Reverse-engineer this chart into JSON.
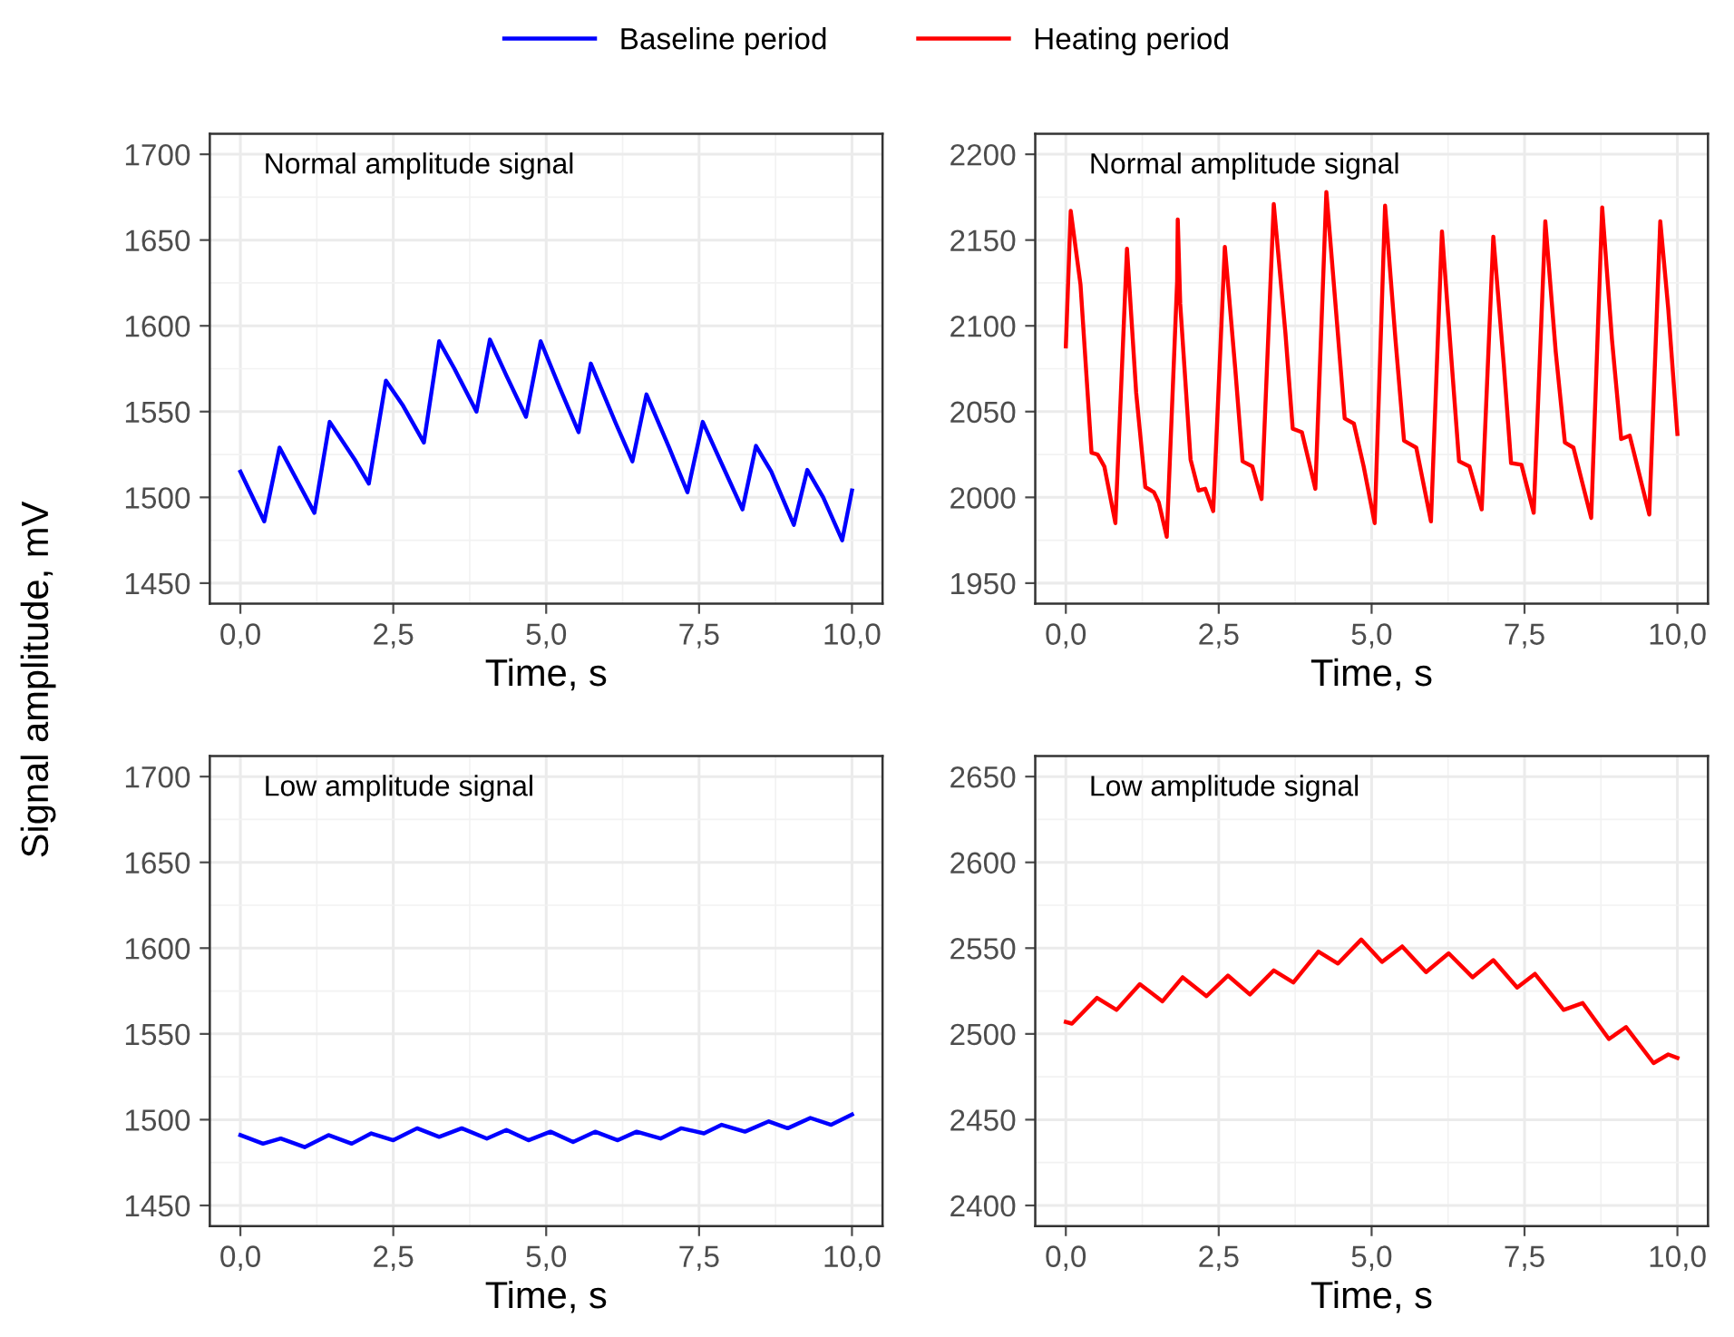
{
  "chart_data": [
    {
      "type": "line",
      "ylabel": "Signal amplitude, mV",
      "xlabel": "Time, s",
      "annotations": [
        "Normal amplitude signal"
      ],
      "legend": "top",
      "grid": true,
      "xlim": [
        -0.5,
        10.5
      ],
      "xticks": [
        {
          "value": 0,
          "label": "0,0"
        },
        {
          "value": 2.5,
          "label": "2,5"
        },
        {
          "value": 5,
          "label": "5,0"
        },
        {
          "value": 7.5,
          "label": "7,5"
        },
        {
          "value": 10,
          "label": "10,0"
        }
      ],
      "ylim": [
        1438,
        1712
      ],
      "yticks": [
        1450,
        1500,
        1550,
        1600,
        1650,
        1700
      ],
      "series": [
        {
          "name": "Baseline period",
          "color": "#0000ff",
          "x": [
            0,
            0.39,
            0.64,
            0.85,
            1.21,
            1.46,
            1.87,
            2.1,
            2.38,
            2.65,
            3.0,
            3.25,
            3.5,
            3.86,
            4.08,
            4.35,
            4.67,
            4.91,
            5.22,
            5.53,
            5.73,
            6.14,
            6.41,
            6.64,
            7.01,
            7.31,
            7.56,
            7.89,
            8.21,
            8.43,
            8.68,
            9.05,
            9.27,
            9.53,
            9.84,
            10.0
          ],
          "values": [
            1515,
            1486,
            1529,
            1515,
            1491,
            1544,
            1522,
            1508,
            1568,
            1554,
            1532,
            1591,
            1575,
            1550,
            1592,
            1571,
            1547,
            1591,
            1564,
            1538,
            1578,
            1543,
            1521,
            1560,
            1529,
            1503,
            1544,
            1518,
            1493,
            1530,
            1515,
            1484,
            1516,
            1500,
            1475,
            1504
          ]
        }
      ]
    },
    {
      "type": "line",
      "xlabel": "Time, s",
      "annotations": [
        "Normal amplitude signal"
      ],
      "legend": "top",
      "grid": true,
      "xlim": [
        -0.5,
        10.5
      ],
      "xticks": [
        {
          "value": 0,
          "label": "0,0"
        },
        {
          "value": 2.5,
          "label": "2,5"
        },
        {
          "value": 5,
          "label": "5,0"
        },
        {
          "value": 7.5,
          "label": "7,5"
        },
        {
          "value": 10,
          "label": "10,0"
        }
      ],
      "ylim": [
        1938,
        2212
      ],
      "yticks": [
        1950,
        2000,
        2050,
        2100,
        2150,
        2200
      ],
      "series": [
        {
          "name": "Heating period",
          "color": "#ff0000",
          "x": [
            0,
            0.08,
            0.24,
            0.42,
            0.52,
            0.63,
            0.81,
            1.0,
            1.15,
            1.3,
            1.44,
            1.52,
            1.65,
            1.82,
            1.83,
            1.87,
            2.04,
            2.17,
            2.28,
            2.41,
            2.6,
            2.77,
            2.89,
            3.05,
            3.2,
            3.4,
            3.59,
            3.71,
            3.86,
            4.08,
            4.26,
            4.44,
            4.56,
            4.71,
            4.87,
            5.05,
            5.22,
            5.39,
            5.53,
            5.73,
            5.97,
            6.15,
            6.31,
            6.43,
            6.6,
            6.8,
            6.99,
            7.16,
            7.28,
            7.45,
            7.65,
            7.84,
            8.01,
            8.16,
            8.3,
            8.59,
            8.77,
            8.93,
            9.08,
            9.22,
            9.54,
            9.72,
            9.85,
            10.0
          ],
          "values": [
            2088,
            2167,
            2124,
            2026,
            2025,
            2018,
            1985,
            2145,
            2061,
            2006,
            2003,
            1997,
            1977,
            2126,
            2162,
            2113,
            2022,
            2004,
            2005,
            1992,
            2146,
            2075,
            2021,
            2018,
            1999,
            2171,
            2096,
            2040,
            2038,
            2005,
            2178,
            2099,
            2046,
            2043,
            2018,
            1985,
            2170,
            2092,
            2033,
            2029,
            1986,
            2155,
            2078,
            2021,
            2018,
            1993,
            2152,
            2078,
            2020,
            2019,
            1991,
            2161,
            2085,
            2032,
            2029,
            1988,
            2169,
            2092,
            2034,
            2036,
            1990,
            2161,
            2110,
            2037
          ]
        }
      ]
    },
    {
      "type": "line",
      "xlabel": "Time, s",
      "annotations": [
        "Low amplitude signal"
      ],
      "legend": "top",
      "grid": true,
      "xlim": [
        -0.5,
        10.5
      ],
      "xticks": [
        {
          "value": 0,
          "label": "0,0"
        },
        {
          "value": 2.5,
          "label": "2,5"
        },
        {
          "value": 5,
          "label": "5,0"
        },
        {
          "value": 7.5,
          "label": "7,5"
        },
        {
          "value": 10,
          "label": "10,0"
        }
      ],
      "ylim": [
        1438,
        1712
      ],
      "yticks": [
        1450,
        1500,
        1550,
        1600,
        1650,
        1700
      ],
      "series": [
        {
          "name": "Baseline period",
          "color": "#0000ff",
          "x": [
            0,
            0.37,
            0.66,
            1.05,
            1.44,
            1.82,
            2.14,
            2.5,
            2.89,
            3.25,
            3.62,
            4.03,
            4.35,
            4.71,
            5.07,
            5.44,
            5.8,
            6.17,
            6.48,
            6.87,
            7.21,
            7.58,
            7.87,
            8.25,
            8.64,
            8.95,
            9.32,
            9.66,
            10.0
          ],
          "values": [
            1491,
            1486,
            1489,
            1484,
            1491,
            1486,
            1492,
            1488,
            1495,
            1490,
            1495,
            1489,
            1494,
            1488,
            1493,
            1487,
            1493,
            1488,
            1493,
            1489,
            1495,
            1492,
            1497,
            1493,
            1499,
            1495,
            1501,
            1497,
            1503
          ]
        }
      ]
    },
    {
      "type": "line",
      "xlabel": "Time, s",
      "annotations": [
        "Low amplitude signal"
      ],
      "legend": "top",
      "grid": true,
      "xlim": [
        -0.5,
        10.5
      ],
      "xticks": [
        {
          "value": 0,
          "label": "0,0"
        },
        {
          "value": 2.5,
          "label": "2,5"
        },
        {
          "value": 5,
          "label": "5,0"
        },
        {
          "value": 7.5,
          "label": "7,5"
        },
        {
          "value": 10,
          "label": "10,0"
        }
      ],
      "ylim": [
        2388,
        2662
      ],
      "yticks": [
        2400,
        2450,
        2500,
        2550,
        2600,
        2650
      ],
      "series": [
        {
          "name": "Heating period",
          "color": "#ff0000",
          "x": [
            0,
            0.1,
            0.51,
            0.83,
            1.21,
            1.58,
            1.91,
            2.3,
            2.65,
            3.01,
            3.4,
            3.72,
            4.13,
            4.45,
            4.83,
            5.17,
            5.5,
            5.89,
            6.26,
            6.65,
            6.99,
            7.38,
            7.67,
            8.14,
            8.45,
            8.88,
            9.16,
            9.61,
            9.85,
            10.0
          ],
          "values": [
            2507,
            2506,
            2521,
            2514,
            2529,
            2519,
            2533,
            2522,
            2534,
            2523,
            2537,
            2530,
            2548,
            2541,
            2555,
            2542,
            2551,
            2536,
            2547,
            2533,
            2543,
            2527,
            2535,
            2514,
            2518,
            2497,
            2504,
            2483,
            2488,
            2486
          ]
        }
      ]
    }
  ]
}
